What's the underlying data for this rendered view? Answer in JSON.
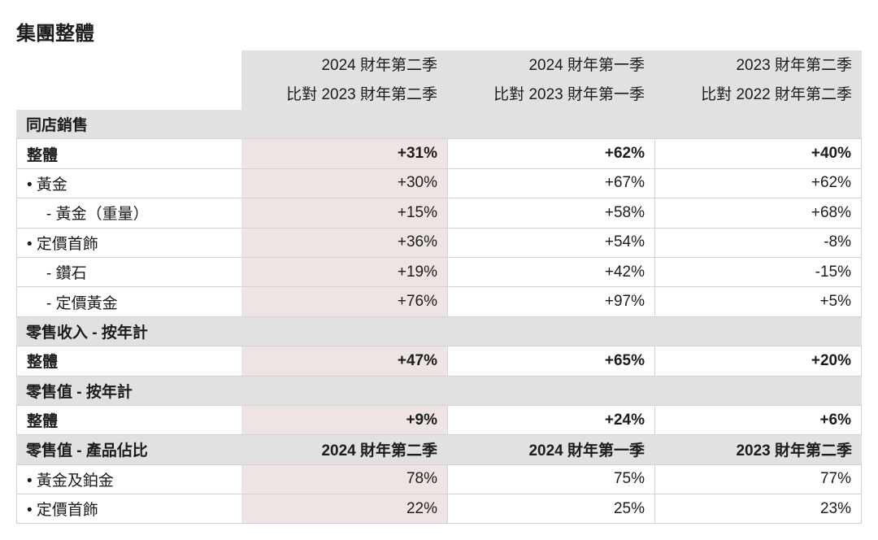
{
  "title": "集團整體",
  "colors": {
    "highlight_column": "#efe4e4",
    "section_fill": "#e1e1e1",
    "grid_line": "#d3d3d3"
  },
  "header": {
    "columns": [
      {
        "period": "2024 財年第二季",
        "comparison": "比對 2023 財年第二季"
      },
      {
        "period": "2024 財年第一季",
        "comparison": "比對 2023 財年第一季"
      },
      {
        "period": "2023 財年第二季",
        "comparison": "比對 2022 財年第二季"
      }
    ]
  },
  "sections": [
    {
      "label": "同店銷售",
      "rows": [
        {
          "label": "整體",
          "values": [
            "+31%",
            "+62%",
            "+40%"
          ]
        },
        {
          "label": "• 黃金",
          "values": [
            "+30%",
            "+67%",
            "+62%"
          ]
        },
        {
          "label": "- 黃金（重量）",
          "values": [
            "+15%",
            "+58%",
            "+68%"
          ]
        },
        {
          "label": "• 定價首飾",
          "values": [
            "+36%",
            "+54%",
            "-8%"
          ]
        },
        {
          "label": "- 鑽石",
          "values": [
            "+19%",
            "+42%",
            "-15%"
          ]
        },
        {
          "label": "- 定價黃金",
          "values": [
            "+76%",
            "+97%",
            "+5%"
          ]
        }
      ]
    },
    {
      "label": "零售收入 - 按年計",
      "rows": [
        {
          "label": "整體",
          "values": [
            "+47%",
            "+65%",
            "+20%"
          ]
        }
      ]
    },
    {
      "label": "零售值 - 按年計",
      "rows": [
        {
          "label": "整體",
          "values": [
            "+9%",
            "+24%",
            "+6%"
          ]
        }
      ]
    },
    {
      "label": "零售值 - 產品佔比",
      "columns": [
        "2024 財年第二季",
        "2024 財年第一季",
        "2023 財年第二季"
      ],
      "rows": [
        {
          "label": "• 黃金及鉑金",
          "values": [
            "78%",
            "75%",
            "77%"
          ]
        },
        {
          "label": "• 定價首飾",
          "values": [
            "22%",
            "25%",
            "23%"
          ]
        }
      ]
    }
  ]
}
